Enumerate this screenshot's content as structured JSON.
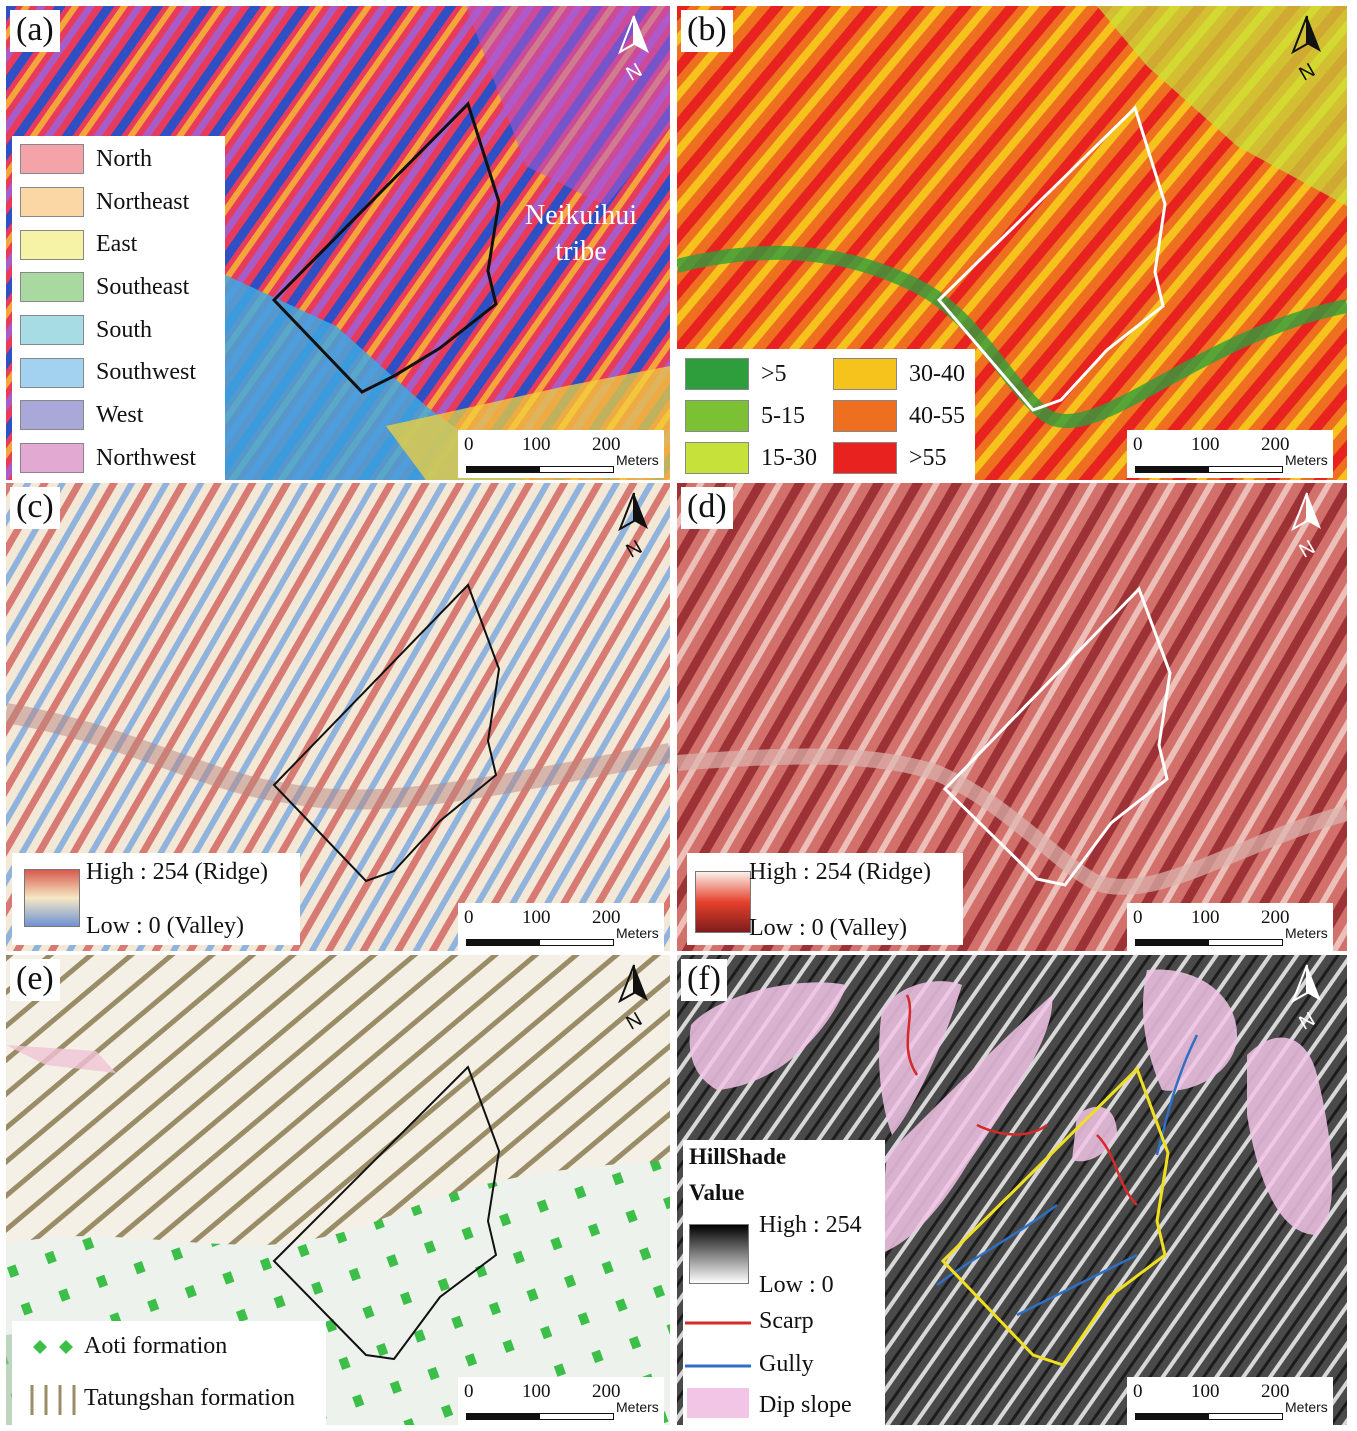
{
  "panels": {
    "a": {
      "label": "(a)",
      "legend": [
        {
          "label": "North",
          "color": "#f4a3a8"
        },
        {
          "label": "Northeast",
          "color": "#fad7a4"
        },
        {
          "label": "East",
          "color": "#f7f3a6"
        },
        {
          "label": "Southeast",
          "color": "#a9d8a1"
        },
        {
          "label": "South",
          "color": "#a7dce4"
        },
        {
          "label": "Southwest",
          "color": "#a3d2f0"
        },
        {
          "label": "West",
          "color": "#a9a8d9"
        },
        {
          "label": "Northwest",
          "color": "#e2a9d2"
        }
      ],
      "annotation_line1": "Neikuihui",
      "annotation_line2": "tribe"
    },
    "b": {
      "label": "(b)",
      "legend": [
        {
          "label": ">5",
          "color": "#2e9e3c"
        },
        {
          "label": "30-40",
          "color": "#f6c21c"
        },
        {
          "label": "5-15",
          "color": "#7cc134"
        },
        {
          "label": "40-55",
          "color": "#ee6f1f"
        },
        {
          "label": "15-30",
          "color": "#c6e23a"
        },
        {
          "label": ">55",
          "color": "#e8221e"
        }
      ]
    },
    "c": {
      "label": "(c)",
      "high": "High : 254 (Ridge)",
      "low": "Low : 0 (Valley)"
    },
    "d": {
      "label": "(d)",
      "high": "High : 254 (Ridge)",
      "low": "Low : 0 (Valley)"
    },
    "e": {
      "label": "(e)",
      "legend_aoti": "Aoti formation",
      "legend_tatung": "Tatungshan formation"
    },
    "f": {
      "label": "(f)",
      "title_line1": "HillShade",
      "title_line2": "Value",
      "high": "High : 254",
      "low": "Low : 0",
      "scarp": "Scarp",
      "gully": "Gully",
      "dip_slope": "Dip slope",
      "scarp_color": "#d42a2a",
      "gully_color": "#2f6fc4",
      "dip_color": "#f2c4e6"
    }
  },
  "scale": {
    "t0": "0",
    "t100": "100",
    "t200": "200",
    "unit": "Meters"
  }
}
